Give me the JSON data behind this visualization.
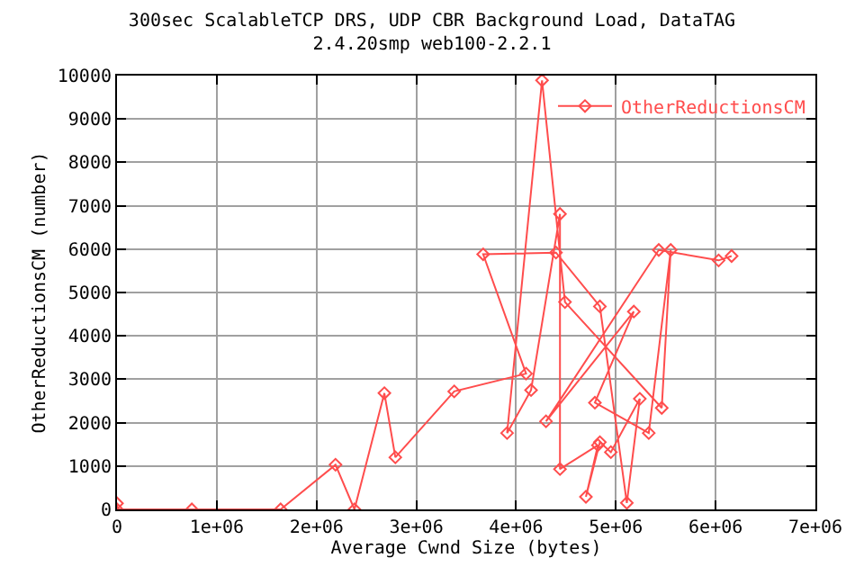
{
  "chart_data": {
    "type": "line",
    "title": "300sec ScalableTCP DRS, UDP CBR Background Load, DataTAG",
    "subtitle": "2.4.20smp web100-2.2.1",
    "xlabel": "Average Cwnd Size (bytes)",
    "ylabel": "OtherReductionsCM (number)",
    "x": [
      0,
      0,
      750000,
      1640000,
      2190000,
      2380000,
      2680000,
      2790000,
      3380000,
      4100000,
      3670000,
      4400000,
      4840000,
      5110000,
      5240000,
      4950000,
      4840000,
      4700000,
      4820000,
      4440000,
      4440000,
      4150000,
      3910000,
      4260000,
      4490000,
      5460000,
      5550000,
      5330000,
      4790000,
      5180000,
      4300000,
      5430000,
      6030000,
      6160000
    ],
    "series": [
      {
        "name": "OtherReductionsCM",
        "color": "#ff4d4d",
        "values": [
          140,
          0,
          0,
          0,
          1030,
          0,
          2680,
          1200,
          2720,
          3130,
          5880,
          5920,
          4680,
          150,
          2550,
          1320,
          1550,
          290,
          1480,
          930,
          6810,
          2750,
          1760,
          9890,
          4780,
          2340,
          5980,
          1760,
          2460,
          4560,
          2030,
          5980,
          5740,
          5840
        ]
      }
    ],
    "xlim": [
      0,
      7000000
    ],
    "xticks": [
      0,
      {
        "value": 1000000,
        "label": "1e+06"
      },
      {
        "value": 2000000,
        "label": "2e+06"
      },
      {
        "value": 3000000,
        "label": "3e+06"
      },
      {
        "value": 4000000,
        "label": "4e+06"
      },
      {
        "value": 5000000,
        "label": "5e+06"
      },
      {
        "value": 6000000,
        "label": "6e+06"
      },
      {
        "value": 7000000,
        "label": "7e+06"
      }
    ],
    "ylim": [
      0,
      10000
    ],
    "yticks": [
      0,
      1000,
      2000,
      3000,
      4000,
      5000,
      6000,
      7000,
      8000,
      9000,
      10000
    ],
    "grid": true,
    "legend": "top right",
    "marker": "diamond",
    "line_style": "solid"
  }
}
